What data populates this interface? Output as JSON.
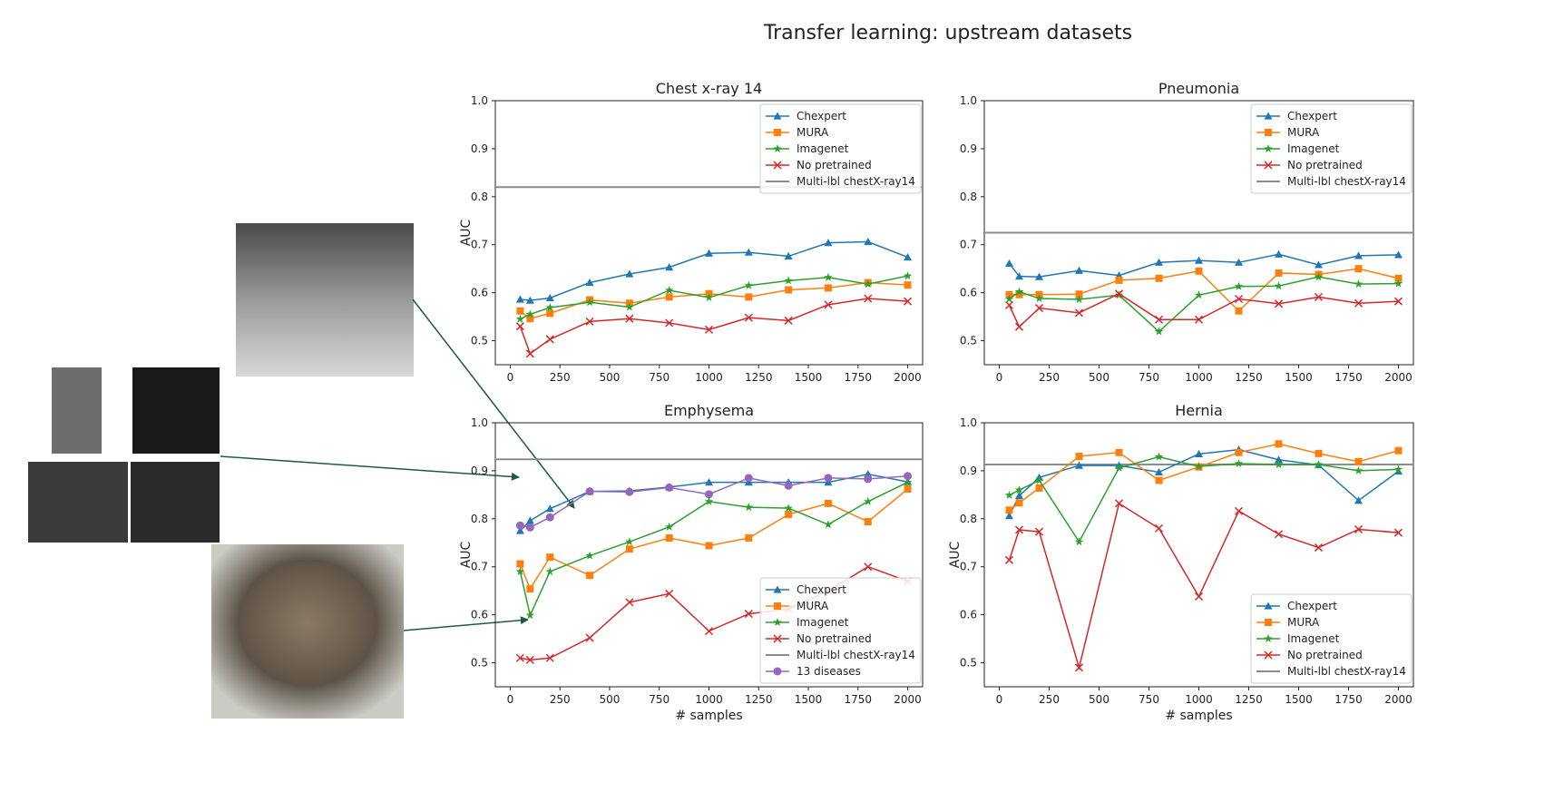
{
  "title": "Transfer learning: upstream datasets",
  "colors": {
    "Chexpert": "#1f77b4",
    "MURA": "#ff7f0e",
    "Imagenet": "#2ca02c",
    "No pretrained": "#d62728",
    "Multi-lbl chestX-ray14": "#8c8c8c",
    "13 diseases": "#9467bd",
    "arrow": "#1d5a45"
  },
  "markers": {
    "Chexpert": "triangle",
    "MURA": "square",
    "Imagenet": "star",
    "No pretrained": "x",
    "13 diseases": "circle"
  },
  "images": [
    "chest x-ray",
    "arm x-ray",
    "arm x-ray with implant",
    "hand x-rays",
    "elbow x-ray",
    "cat photo"
  ],
  "chart_data": [
    {
      "type": "line",
      "title": "Chest x-ray 14",
      "xlabel": "",
      "ylabel": "AUC",
      "ylim": [
        0.45,
        1.0
      ],
      "xlim": [
        -75,
        2075
      ],
      "yticks": [
        "0.5",
        "0.6",
        "0.7",
        "0.8",
        "0.9",
        "1.0"
      ],
      "xticks": [
        "0",
        "250",
        "500",
        "750",
        "1000",
        "1250",
        "1500",
        "1750",
        "2000"
      ],
      "legend": "top-right",
      "x": [
        50,
        100,
        200,
        400,
        600,
        800,
        1000,
        1200,
        1400,
        1600,
        1800,
        2000
      ],
      "series": [
        {
          "name": "Chexpert",
          "values": [
            0.586,
            0.584,
            0.589,
            0.621,
            0.639,
            0.653,
            0.682,
            0.684,
            0.676,
            0.704,
            0.706,
            0.674
          ]
        },
        {
          "name": "MURA",
          "values": [
            0.562,
            0.546,
            0.557,
            0.585,
            0.578,
            0.591,
            0.598,
            0.591,
            0.606,
            0.61,
            0.621,
            0.616
          ]
        },
        {
          "name": "Imagenet",
          "values": [
            0.545,
            0.555,
            0.569,
            0.58,
            0.57,
            0.605,
            0.59,
            0.615,
            0.625,
            0.632,
            0.618,
            0.635
          ]
        },
        {
          "name": "No pretrained",
          "values": [
            0.53,
            0.473,
            0.503,
            0.54,
            0.546,
            0.537,
            0.523,
            0.548,
            0.542,
            0.575,
            0.588,
            0.582
          ]
        }
      ],
      "hline": {
        "name": "Multi-lbl chestX-ray14",
        "value": 0.82
      }
    },
    {
      "type": "line",
      "title": "Pneumonia",
      "xlabel": "",
      "ylabel": "",
      "ylim": [
        0.45,
        1.0
      ],
      "xlim": [
        -75,
        2075
      ],
      "yticks": [
        "0.5",
        "0.6",
        "0.7",
        "0.8",
        "0.9",
        "1.0"
      ],
      "xticks": [
        "0",
        "250",
        "500",
        "750",
        "1000",
        "1250",
        "1500",
        "1750",
        "2000"
      ],
      "legend": "top-right",
      "x": [
        50,
        100,
        200,
        400,
        600,
        800,
        1000,
        1200,
        1400,
        1600,
        1800,
        2000
      ],
      "series": [
        {
          "name": "Chexpert",
          "values": [
            0.661,
            0.634,
            0.633,
            0.646,
            0.636,
            0.663,
            0.667,
            0.663,
            0.68,
            0.658,
            0.677,
            0.679
          ]
        },
        {
          "name": "MURA",
          "values": [
            0.596,
            0.596,
            0.596,
            0.597,
            0.626,
            0.63,
            0.645,
            0.562,
            0.641,
            0.638,
            0.65,
            0.63
          ]
        },
        {
          "name": "Imagenet",
          "values": [
            0.587,
            0.602,
            0.588,
            0.586,
            0.595,
            0.519,
            0.595,
            0.613,
            0.614,
            0.633,
            0.618,
            0.619
          ]
        },
        {
          "name": "No pretrained",
          "values": [
            0.574,
            0.529,
            0.568,
            0.558,
            0.598,
            0.544,
            0.544,
            0.587,
            0.577,
            0.591,
            0.578,
            0.582
          ]
        }
      ],
      "hline": {
        "name": "Multi-lbl chestX-ray14",
        "value": 0.725
      }
    },
    {
      "type": "line",
      "title": "Emphysema",
      "xlabel": "# samples",
      "ylabel": "AUC",
      "ylim": [
        0.45,
        1.0
      ],
      "xlim": [
        -75,
        2075
      ],
      "yticks": [
        "0.5",
        "0.6",
        "0.7",
        "0.8",
        "0.9",
        "1.0"
      ],
      "xticks": [
        "0",
        "250",
        "500",
        "750",
        "1000",
        "1250",
        "1500",
        "1750",
        "2000"
      ],
      "legend": "bottom-right",
      "x": [
        50,
        100,
        200,
        400,
        600,
        800,
        1000,
        1200,
        1400,
        1600,
        1800,
        2000
      ],
      "series": [
        {
          "name": "Chexpert",
          "values": [
            0.775,
            0.796,
            0.821,
            0.857,
            0.858,
            0.866,
            0.876,
            0.876,
            0.876,
            0.876,
            0.893,
            0.877
          ]
        },
        {
          "name": "MURA",
          "values": [
            0.706,
            0.654,
            0.72,
            0.682,
            0.737,
            0.76,
            0.744,
            0.76,
            0.809,
            0.832,
            0.794,
            0.862
          ]
        },
        {
          "name": "Imagenet",
          "values": [
            0.69,
            0.599,
            0.69,
            0.723,
            0.752,
            0.783,
            0.836,
            0.824,
            0.822,
            0.788,
            0.836,
            0.876
          ]
        },
        {
          "name": "No pretrained",
          "values": [
            0.51,
            0.506,
            0.51,
            0.552,
            0.626,
            0.644,
            0.566,
            0.602,
            0.612,
            0.65,
            0.7,
            0.67
          ]
        },
        {
          "name": "13 diseases",
          "values": [
            0.786,
            0.782,
            0.803,
            0.857,
            0.856,
            0.865,
            0.851,
            0.885,
            0.869,
            0.885,
            0.883,
            0.889
          ]
        }
      ],
      "hline": {
        "name": "Multi-lbl chestX-ray14",
        "value": 0.924
      }
    },
    {
      "type": "line",
      "title": "Hernia",
      "xlabel": "# samples",
      "ylabel": "AUC",
      "ylim": [
        0.45,
        1.0
      ],
      "xlim": [
        -75,
        2075
      ],
      "yticks": [
        "0.5",
        "0.6",
        "0.7",
        "0.8",
        "0.9",
        "1.0"
      ],
      "xticks": [
        "0",
        "250",
        "500",
        "750",
        "1000",
        "1250",
        "1500",
        "1750",
        "2000"
      ],
      "legend": "bottom-right",
      "x": [
        50,
        100,
        200,
        400,
        600,
        800,
        1000,
        1200,
        1400,
        1600,
        1800,
        2000
      ],
      "series": [
        {
          "name": "Chexpert",
          "values": [
            0.806,
            0.848,
            0.886,
            0.911,
            0.911,
            0.897,
            0.935,
            0.944,
            0.923,
            0.912,
            0.838,
            0.899
          ]
        },
        {
          "name": "MURA",
          "values": [
            0.818,
            0.833,
            0.864,
            0.93,
            0.938,
            0.88,
            0.908,
            0.938,
            0.956,
            0.936,
            0.919,
            0.942
          ]
        },
        {
          "name": "Imagenet",
          "values": [
            0.849,
            0.86,
            0.88,
            0.752,
            0.906,
            0.929,
            0.909,
            0.915,
            0.913,
            0.913,
            0.9,
            0.903
          ]
        },
        {
          "name": "No pretrained",
          "values": [
            0.714,
            0.777,
            0.773,
            0.49,
            0.832,
            0.78,
            0.638,
            0.816,
            0.768,
            0.74,
            0.778,
            0.771
          ]
        }
      ],
      "hline": {
        "name": "Multi-lbl chestX-ray14",
        "value": 0.913
      }
    }
  ]
}
